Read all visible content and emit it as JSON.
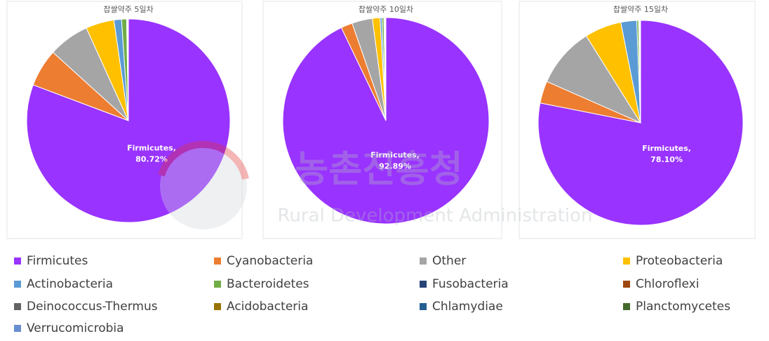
{
  "chart_data": [
    {
      "type": "pie",
      "title": "찹쌀약주 5일차",
      "values": [
        80.72,
        6.0,
        6.5,
        4.5,
        1.2,
        0.8,
        0.04,
        0.04,
        0.04,
        0.04,
        0.04,
        0.04,
        0.04
      ],
      "value_labels": [
        "Firmicutes,\n80.72%",
        null,
        null,
        null,
        null,
        null,
        null,
        null,
        null,
        null,
        null,
        null,
        null
      ]
    },
    {
      "type": "pie",
      "title": "찹쌀약주 10일차",
      "values": [
        92.89,
        1.8,
        3.2,
        1.2,
        0.3,
        0.3,
        0.05,
        0.05,
        0.05,
        0.04,
        0.04,
        0.04,
        0.04
      ],
      "value_labels": [
        "Firmicutes,\n92.89%",
        null,
        null,
        null,
        null,
        null,
        null,
        null,
        null,
        null,
        null,
        null,
        null
      ]
    },
    {
      "type": "pie",
      "title": "찹쌀약주 15일차",
      "values": [
        78.1,
        3.5,
        9.5,
        5.8,
        2.5,
        0.3,
        0.05,
        0.05,
        0.04,
        0.04,
        0.04,
        0.04,
        0.04
      ],
      "value_labels": [
        "Firmicutes,\n78.10%",
        null,
        null,
        null,
        null,
        null,
        null,
        null,
        null,
        null,
        null,
        null,
        null
      ]
    }
  ],
  "legend": {
    "names": [
      "Firmicutes",
      "Cyanobacteria",
      "Other",
      "Proteobacteria",
      "Actinobacteria",
      "Bacteroidetes",
      "Fusobacteria",
      "Chloroflexi",
      "Deinococcus-Thermus",
      "Acidobacteria",
      "Chlamydiae",
      "Planctomycetes",
      "Verrucomicrobia"
    ],
    "colors": [
      "#9933ff",
      "#ed7d31",
      "#a5a5a5",
      "#ffc000",
      "#5b9bd5",
      "#70ad47",
      "#264478",
      "#9e480e",
      "#636363",
      "#997300",
      "#255e91",
      "#43682b",
      "#698ed0"
    ]
  },
  "watermark": {
    "korean": "농촌진흥청",
    "english": "Rural Development Administration"
  }
}
